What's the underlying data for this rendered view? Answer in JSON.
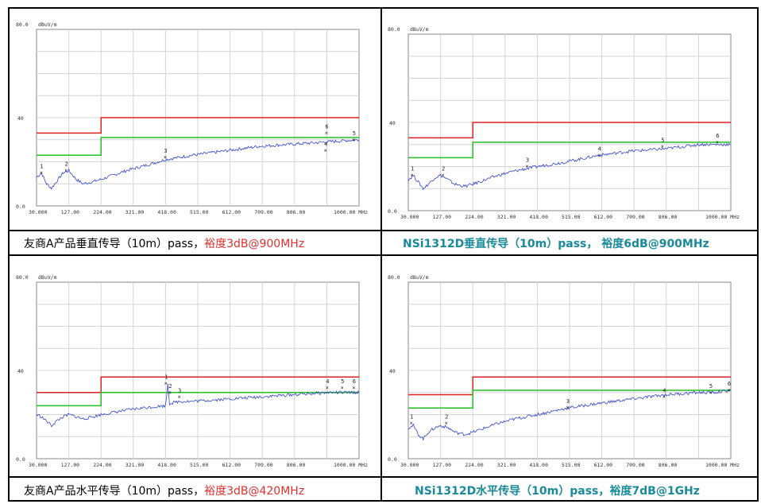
{
  "colors": {
    "limit_qp": "#e02020",
    "limit_avg": "#22c022",
    "trace": "#3344cc",
    "caption_red": "#e03030",
    "caption_teal": "#1a8a9a"
  },
  "chart_data": [
    {
      "type": "line",
      "unit_label": "dBuV/m",
      "ymax_label": "80.0",
      "ymid_label": "40",
      "ymin_label": "0.0",
      "ylim": [
        0,
        80
      ],
      "xlim": [
        30,
        1000
      ],
      "xticks": [
        "30.000",
        "127.00",
        "224.00",
        "321.00",
        "418.00",
        "515.00",
        "612.00",
        "709.00",
        "806.00",
        "1000.00 MHz"
      ],
      "limit_upper": [
        [
          30,
          33
        ],
        [
          224,
          33
        ],
        [
          224,
          40
        ],
        [
          1000,
          40
        ]
      ],
      "limit_lower": [
        [
          30,
          23
        ],
        [
          224,
          23
        ],
        [
          224,
          31
        ],
        [
          1000,
          31
        ]
      ],
      "trace": [
        [
          30,
          13
        ],
        [
          45,
          15
        ],
        [
          60,
          10
        ],
        [
          75,
          8
        ],
        [
          90,
          11
        ],
        [
          110,
          15
        ],
        [
          127,
          16
        ],
        [
          150,
          12
        ],
        [
          170,
          10
        ],
        [
          200,
          11
        ],
        [
          224,
          12
        ],
        [
          300,
          16
        ],
        [
          350,
          18
        ],
        [
          418,
          21
        ],
        [
          500,
          23
        ],
        [
          600,
          25
        ],
        [
          700,
          27
        ],
        [
          800,
          28
        ],
        [
          905,
          29
        ],
        [
          950,
          29.5
        ],
        [
          1000,
          30
        ]
      ],
      "markers": [
        {
          "label": "1",
          "x": 45,
          "y": 15
        },
        {
          "label": "2",
          "x": 120,
          "y": 16
        },
        {
          "label": "3",
          "x": 418,
          "y": 22
        },
        {
          "label": "4",
          "x": 900,
          "y": 25
        },
        {
          "label": "5",
          "x": 985,
          "y": 30
        },
        {
          "label": "6",
          "x": 903,
          "y": 33
        }
      ],
      "caption_main": "友商A产品垂直传导（10m）pass，",
      "caption_accent": "裕度3dB@900MHz"
    },
    {
      "type": "line",
      "unit_label": "dBuV/m",
      "ymax_label": "80.0",
      "ymid_label": "40",
      "ymin_label": "0.0",
      "ylim": [
        0,
        80
      ],
      "xlim": [
        30,
        1000
      ],
      "xticks": [
        "30.000",
        "127.00",
        "224.00",
        "321.00",
        "418.00",
        "515.00",
        "612.00",
        "709.00",
        "806.00",
        "1000.00 MHz"
      ],
      "limit_upper": [
        [
          30,
          33
        ],
        [
          224,
          33
        ],
        [
          224,
          40
        ],
        [
          1000,
          40
        ]
      ],
      "limit_lower": [
        [
          30,
          24
        ],
        [
          224,
          24
        ],
        [
          224,
          31
        ],
        [
          1000,
          31
        ]
      ],
      "trace": [
        [
          30,
          14
        ],
        [
          45,
          16
        ],
        [
          60,
          13
        ],
        [
          75,
          10
        ],
        [
          90,
          12
        ],
        [
          110,
          15
        ],
        [
          127,
          16
        ],
        [
          150,
          14
        ],
        [
          170,
          12
        ],
        [
          200,
          11
        ],
        [
          224,
          12
        ],
        [
          300,
          16
        ],
        [
          350,
          18
        ],
        [
          418,
          20
        ],
        [
          500,
          22
        ],
        [
          600,
          25
        ],
        [
          700,
          27
        ],
        [
          800,
          28
        ],
        [
          906,
          30
        ],
        [
          950,
          30
        ],
        [
          1000,
          30
        ]
      ],
      "markers": [
        {
          "label": "1",
          "x": 42,
          "y": 16
        },
        {
          "label": "2",
          "x": 135,
          "y": 16
        },
        {
          "label": "3",
          "x": 388,
          "y": 20
        },
        {
          "label": "4",
          "x": 605,
          "y": 25
        },
        {
          "label": "5",
          "x": 795,
          "y": 29
        },
        {
          "label": "6",
          "x": 960,
          "y": 31
        }
      ],
      "caption_main": "NSi1312D垂直传导（10m）pass，",
      "caption_accent": "裕度6dB@900MHz"
    },
    {
      "type": "line",
      "unit_label": "dBuV/m",
      "ymax_label": "80.0",
      "ymid_label": "40",
      "ymin_label": "0.0",
      "ylim": [
        0,
        80
      ],
      "xlim": [
        30,
        1000
      ],
      "xticks": [
        "30.000",
        "127.00",
        "224.00",
        "321.00",
        "418.00",
        "515.00",
        "612.00",
        "709.00",
        "806.00",
        "1000.00 MHz"
      ],
      "limit_upper": [
        [
          30,
          30
        ],
        [
          224,
          30
        ],
        [
          224,
          37
        ],
        [
          1000,
          37
        ]
      ],
      "limit_lower": [
        [
          30,
          24
        ],
        [
          224,
          24
        ],
        [
          224,
          30
        ],
        [
          1000,
          30
        ]
      ],
      "trace": [
        [
          30,
          20
        ],
        [
          45,
          19
        ],
        [
          60,
          17
        ],
        [
          75,
          15
        ],
        [
          90,
          17
        ],
        [
          110,
          19
        ],
        [
          127,
          20
        ],
        [
          150,
          19
        ],
        [
          170,
          18
        ],
        [
          200,
          19
        ],
        [
          224,
          20
        ],
        [
          300,
          22
        ],
        [
          350,
          23
        ],
        [
          418,
          24
        ],
        [
          425,
          34
        ],
        [
          430,
          25
        ],
        [
          460,
          26
        ],
        [
          500,
          26
        ],
        [
          600,
          27
        ],
        [
          700,
          28
        ],
        [
          800,
          29
        ],
        [
          905,
          30
        ],
        [
          950,
          30
        ],
        [
          1000,
          30
        ]
      ],
      "markers": [
        {
          "label": "1",
          "x": 420,
          "y": 34
        },
        {
          "label": "2",
          "x": 432,
          "y": 30
        },
        {
          "label": "3",
          "x": 460,
          "y": 28
        },
        {
          "label": "4",
          "x": 905,
          "y": 32
        },
        {
          "label": "5",
          "x": 950,
          "y": 32
        },
        {
          "label": "6",
          "x": 985,
          "y": 32
        }
      ],
      "caption_main": "友商A产品水平传导（10m）pass，",
      "caption_accent": "裕度3dB@420MHz"
    },
    {
      "type": "line",
      "unit_label": "dBuV/m",
      "ymax_label": "80.0",
      "ymid_label": "40",
      "ymin_label": "0.0",
      "ylim": [
        0,
        80
      ],
      "xlim": [
        30,
        1000
      ],
      "xticks": [
        "30.000",
        "127.00",
        "224.00",
        "321.00",
        "418.00",
        "515.00",
        "612.00",
        "709.00",
        "806.00",
        "1000.00 MHz"
      ],
      "limit_upper": [
        [
          30,
          29
        ],
        [
          224,
          29
        ],
        [
          224,
          37
        ],
        [
          1000,
          37
        ]
      ],
      "limit_lower": [
        [
          30,
          23
        ],
        [
          224,
          23
        ],
        [
          224,
          31
        ],
        [
          1000,
          31
        ]
      ],
      "trace": [
        [
          30,
          14
        ],
        [
          45,
          15
        ],
        [
          60,
          11
        ],
        [
          75,
          9
        ],
        [
          90,
          12
        ],
        [
          110,
          14
        ],
        [
          127,
          15
        ],
        [
          150,
          14
        ],
        [
          170,
          12
        ],
        [
          200,
          11
        ],
        [
          224,
          12
        ],
        [
          300,
          16
        ],
        [
          350,
          18
        ],
        [
          418,
          20
        ],
        [
          510,
          23
        ],
        [
          600,
          25
        ],
        [
          700,
          27
        ],
        [
          806,
          29
        ],
        [
          900,
          30
        ],
        [
          950,
          30
        ],
        [
          1000,
          31
        ]
      ],
      "markers": [
        {
          "label": "1",
          "x": 40,
          "y": 16
        },
        {
          "label": "2",
          "x": 145,
          "y": 16
        },
        {
          "label": "3",
          "x": 510,
          "y": 23
        },
        {
          "label": "4",
          "x": 800,
          "y": 28
        },
        {
          "label": "5",
          "x": 940,
          "y": 30
        },
        {
          "label": "6",
          "x": 995,
          "y": 31
        }
      ],
      "caption_main": "NSi1312D水平传导（10m）pass，",
      "caption_accent": "裕度7dB@1GHz"
    }
  ]
}
